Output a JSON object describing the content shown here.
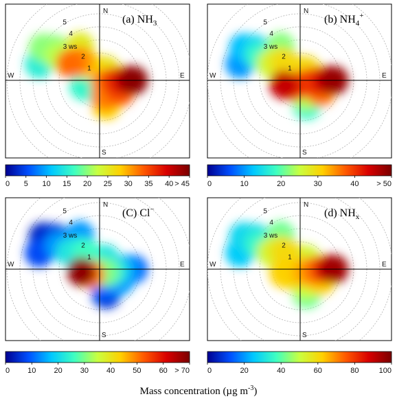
{
  "footer_label": "Mass concentration (µg m",
  "footer_exp": "-3",
  "footer_end": ")",
  "directions": {
    "n": "N",
    "s": "S",
    "e": "E",
    "w": "W"
  },
  "ring_labels": [
    "1",
    "2",
    "3 ws",
    "4",
    "5"
  ],
  "colors": {
    "colormap": [
      "#000090",
      "#0050ff",
      "#00c8ff",
      "#40ffc0",
      "#c8ff40",
      "#ffd000",
      "#ff5a00",
      "#d80000",
      "#7a0000"
    ],
    "axis": "#000000",
    "ring": "#b0b0b0"
  },
  "chart_data": [
    {
      "type": "heatmap",
      "kind": "polar-bivariate",
      "title_pre": "(a) NH",
      "title_sub": "3",
      "title_sup": "",
      "colorbar_ticks": [
        "0",
        "5",
        "10",
        "15",
        "20",
        "25",
        "30",
        "35",
        "40",
        "> 45"
      ],
      "colorbar_range": [
        0,
        45
      ],
      "blobs": [
        {
          "ws": 4.2,
          "dir": 305,
          "value": 20
        },
        {
          "ws": 5.0,
          "dir": 300,
          "value": 20
        },
        {
          "ws": 4.8,
          "dir": 285,
          "value": 15
        },
        {
          "ws": 3.6,
          "dir": 300,
          "value": 22
        },
        {
          "ws": 2.6,
          "dir": 300,
          "value": 33
        },
        {
          "ws": 2.1,
          "dir": 315,
          "value": 31
        },
        {
          "ws": 3.0,
          "dir": 330,
          "value": 25
        },
        {
          "ws": 1.6,
          "dir": 320,
          "value": 28
        },
        {
          "ws": 1.3,
          "dir": 250,
          "value": 16
        },
        {
          "ws": 0.8,
          "dir": 220,
          "value": 14
        },
        {
          "ws": 0.5,
          "dir": 120,
          "value": 32
        },
        {
          "ws": 1.2,
          "dir": 95,
          "value": 36
        },
        {
          "ws": 2.0,
          "dir": 90,
          "value": 40
        },
        {
          "ws": 2.6,
          "dir": 90,
          "value": 44
        },
        {
          "ws": 1.8,
          "dir": 120,
          "value": 34
        },
        {
          "ws": 1.3,
          "dir": 160,
          "value": 32
        },
        {
          "ws": 2.0,
          "dir": 165,
          "value": 28
        },
        {
          "ws": 0.9,
          "dir": 30,
          "value": 26
        }
      ]
    },
    {
      "type": "heatmap",
      "kind": "polar-bivariate",
      "title_pre": "(b) NH",
      "title_sub": "4",
      "title_sup": "+",
      "colorbar_ticks": [
        "0",
        "10",
        "20",
        "30",
        "40",
        "> 50"
      ],
      "colorbar_range": [
        0,
        50
      ],
      "blobs": [
        {
          "ws": 4.2,
          "dir": 305,
          "value": 14
        },
        {
          "ws": 5.0,
          "dir": 300,
          "value": 12
        },
        {
          "ws": 4.8,
          "dir": 285,
          "value": 10
        },
        {
          "ws": 3.6,
          "dir": 300,
          "value": 18
        },
        {
          "ws": 2.6,
          "dir": 300,
          "value": 26
        },
        {
          "ws": 2.1,
          "dir": 315,
          "value": 28
        },
        {
          "ws": 3.0,
          "dir": 330,
          "value": 22
        },
        {
          "ws": 1.6,
          "dir": 320,
          "value": 30
        },
        {
          "ws": 1.3,
          "dir": 255,
          "value": 45
        },
        {
          "ws": 0.8,
          "dir": 230,
          "value": 40
        },
        {
          "ws": 0.5,
          "dir": 120,
          "value": 38
        },
        {
          "ws": 1.2,
          "dir": 95,
          "value": 40
        },
        {
          "ws": 2.0,
          "dir": 90,
          "value": 44
        },
        {
          "ws": 2.6,
          "dir": 90,
          "value": 48
        },
        {
          "ws": 1.8,
          "dir": 120,
          "value": 36
        },
        {
          "ws": 1.3,
          "dir": 160,
          "value": 24
        },
        {
          "ws": 2.0,
          "dir": 165,
          "value": 18
        },
        {
          "ws": 0.9,
          "dir": 30,
          "value": 30
        }
      ]
    },
    {
      "type": "heatmap",
      "kind": "polar-bivariate",
      "title_pre": "(C) Cl",
      "title_sub": "",
      "title_sup": "−",
      "colorbar_ticks": [
        "0",
        "10",
        "20",
        "30",
        "40",
        "50",
        "60",
        "> 70"
      ],
      "colorbar_range": [
        0,
        70
      ],
      "blobs": [
        {
          "ws": 4.2,
          "dir": 305,
          "value": 6
        },
        {
          "ws": 5.0,
          "dir": 300,
          "value": 4
        },
        {
          "ws": 4.8,
          "dir": 285,
          "value": 8
        },
        {
          "ws": 3.6,
          "dir": 300,
          "value": 14
        },
        {
          "ws": 2.6,
          "dir": 300,
          "value": 22
        },
        {
          "ws": 2.1,
          "dir": 315,
          "value": 20
        },
        {
          "ws": 3.0,
          "dir": 330,
          "value": 14
        },
        {
          "ws": 1.6,
          "dir": 320,
          "value": 26
        },
        {
          "ws": 1.4,
          "dir": 262,
          "value": 68
        },
        {
          "ws": 0.8,
          "dir": 240,
          "value": 50
        },
        {
          "ws": 0.5,
          "dir": 120,
          "value": 30
        },
        {
          "ws": 1.2,
          "dir": 95,
          "value": 22
        },
        {
          "ws": 2.0,
          "dir": 90,
          "value": 14
        },
        {
          "ws": 2.6,
          "dir": 90,
          "value": 10
        },
        {
          "ws": 1.8,
          "dir": 120,
          "value": 14
        },
        {
          "ws": 1.3,
          "dir": 160,
          "value": 10
        },
        {
          "ws": 2.0,
          "dir": 165,
          "value": 6
        },
        {
          "ws": 0.9,
          "dir": 30,
          "value": 22
        }
      ]
    },
    {
      "type": "heatmap",
      "kind": "polar-bivariate",
      "title_pre": "(d) NH",
      "title_sub": "x",
      "title_sup": "",
      "colorbar_ticks": [
        "0",
        "20",
        "40",
        "60",
        "80",
        "100"
      ],
      "colorbar_range": [
        0,
        100
      ],
      "blobs": [
        {
          "ws": 4.2,
          "dir": 305,
          "value": 30
        },
        {
          "ws": 5.0,
          "dir": 300,
          "value": 28
        },
        {
          "ws": 4.8,
          "dir": 285,
          "value": 26
        },
        {
          "ws": 3.6,
          "dir": 300,
          "value": 36
        },
        {
          "ws": 2.6,
          "dir": 300,
          "value": 52
        },
        {
          "ws": 2.1,
          "dir": 315,
          "value": 56
        },
        {
          "ws": 3.0,
          "dir": 330,
          "value": 42
        },
        {
          "ws": 1.6,
          "dir": 320,
          "value": 60
        },
        {
          "ws": 1.3,
          "dir": 255,
          "value": 62
        },
        {
          "ws": 0.8,
          "dir": 230,
          "value": 58
        },
        {
          "ws": 0.5,
          "dir": 120,
          "value": 66
        },
        {
          "ws": 1.2,
          "dir": 95,
          "value": 72
        },
        {
          "ws": 2.0,
          "dir": 90,
          "value": 84
        },
        {
          "ws": 2.6,
          "dir": 90,
          "value": 95
        },
        {
          "ws": 1.8,
          "dir": 120,
          "value": 62
        },
        {
          "ws": 1.3,
          "dir": 160,
          "value": 50
        },
        {
          "ws": 2.0,
          "dir": 165,
          "value": 42
        },
        {
          "ws": 0.9,
          "dir": 30,
          "value": 52
        }
      ]
    }
  ]
}
